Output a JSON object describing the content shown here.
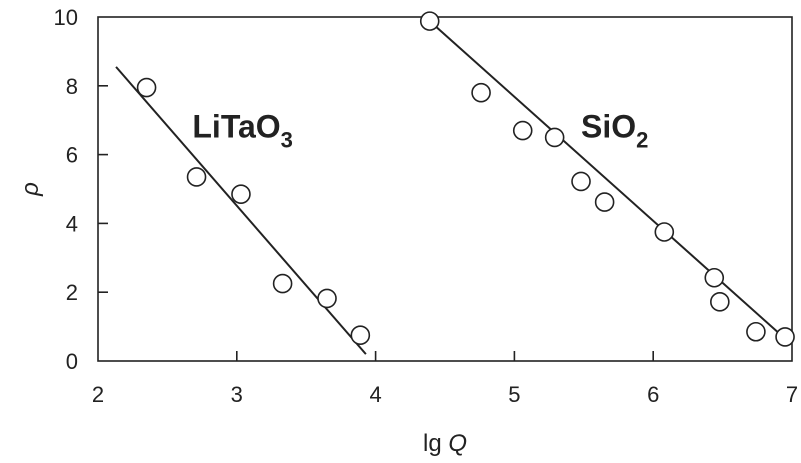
{
  "chart_data": {
    "type": "scatter",
    "title": "",
    "xlabel_main": "lg ",
    "xlabel_italic": "Q",
    "ylabel": "ρ",
    "xlim": [
      2,
      7
    ],
    "ylim": [
      0,
      10
    ],
    "xticks": [
      2,
      3,
      4,
      5,
      6,
      7
    ],
    "yticks": [
      0,
      2,
      4,
      6,
      8,
      10
    ],
    "grid": false,
    "series": [
      {
        "label_main": "LiTaO",
        "label_sub": "3",
        "label_pos": [
          2.68,
          6.5
        ],
        "points": [
          [
            2.35,
            7.95
          ],
          [
            2.71,
            5.35
          ],
          [
            3.03,
            4.85
          ],
          [
            3.33,
            2.25
          ],
          [
            3.65,
            1.82
          ],
          [
            3.89,
            0.75
          ]
        ],
        "fit": [
          [
            2.13,
            8.55
          ],
          [
            3.93,
            0.2
          ]
        ]
      },
      {
        "label_main": "SiO",
        "label_sub": "2",
        "label_pos": [
          5.48,
          6.5
        ],
        "points": [
          [
            4.39,
            9.88
          ],
          [
            4.76,
            7.8
          ],
          [
            5.06,
            6.7
          ],
          [
            5.29,
            6.5
          ],
          [
            5.48,
            5.22
          ],
          [
            5.65,
            4.62
          ],
          [
            6.08,
            3.75
          ],
          [
            6.44,
            2.42
          ],
          [
            6.48,
            1.72
          ],
          [
            6.74,
            0.85
          ],
          [
            6.95,
            0.7
          ]
        ],
        "fit": [
          [
            4.39,
            9.88
          ],
          [
            6.95,
            0.65
          ]
        ]
      }
    ]
  }
}
